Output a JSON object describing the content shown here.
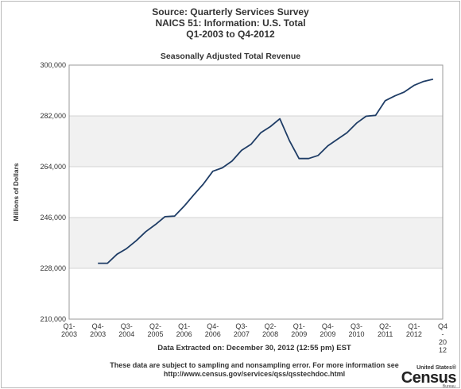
{
  "header": {
    "line1": "Source: Quarterly Services Survey",
    "line2": "NAICS 51: Information: U.S. Total",
    "line3": "Q1-2003 to Q4-2012"
  },
  "chart_data": {
    "type": "line",
    "title": "Seasonally Adjusted Total Revenue",
    "ylabel": "Millions of Dollars",
    "xlabel": "",
    "ylim": [
      210000,
      300000
    ],
    "yticks": [
      "210,000",
      "228,000",
      "246,000",
      "264,000",
      "282,000",
      "300,000"
    ],
    "x_tick_labels": [
      [
        "Q1-",
        "2003"
      ],
      [
        "Q4-",
        "2003"
      ],
      [
        "Q3-",
        "2004"
      ],
      [
        "Q2-",
        "2005"
      ],
      [
        "Q1-",
        "2006"
      ],
      [
        "Q4-",
        "2006"
      ],
      [
        "Q3-",
        "2007"
      ],
      [
        "Q2-",
        "2008"
      ],
      [
        "Q1-",
        "2009"
      ],
      [
        "Q4-",
        "2009"
      ],
      [
        "Q3-",
        "2010"
      ],
      [
        "Q2-",
        "2011"
      ],
      [
        "Q1-",
        "2012"
      ],
      [
        "Q4",
        "-",
        "20",
        "12"
      ]
    ],
    "grid": true,
    "legend": "none",
    "series": [
      {
        "color": "#1f3d66",
        "x": [
          "Q1-2003",
          "Q2-2003",
          "Q3-2003",
          "Q4-2003",
          "Q1-2004",
          "Q2-2004",
          "Q3-2004",
          "Q4-2004",
          "Q1-2005",
          "Q2-2005",
          "Q3-2005",
          "Q4-2005",
          "Q1-2006",
          "Q2-2006",
          "Q3-2006",
          "Q4-2006",
          "Q1-2007",
          "Q2-2007",
          "Q3-2007",
          "Q4-2007",
          "Q1-2008",
          "Q2-2008",
          "Q3-2008",
          "Q4-2008",
          "Q1-2009",
          "Q2-2009",
          "Q3-2009",
          "Q4-2009",
          "Q1-2010",
          "Q2-2010",
          "Q3-2010",
          "Q4-2010",
          "Q1-2011",
          "Q2-2011",
          "Q3-2011",
          "Q4-2011",
          "Q1-2012",
          "Q2-2012",
          "Q3-2012",
          "Q4-2012"
        ],
        "values": [
          null,
          null,
          null,
          229800,
          229800,
          233000,
          235000,
          237800,
          241000,
          243500,
          246300,
          246500,
          250000,
          254000,
          257800,
          262400,
          263600,
          266000,
          269800,
          272000,
          276000,
          278200,
          281000,
          273200,
          266900,
          266900,
          268000,
          271400,
          273700,
          276000,
          279400,
          281900,
          282200,
          287400,
          289100,
          290500,
          292800,
          294200,
          295000,
          null
        ]
      }
    ]
  },
  "footer": {
    "extracted": "Data Extracted on: December 30, 2012 (12:55 pm) EST",
    "note_line1": "These data are subject to sampling and nonsampling error. For more information see",
    "note_line2": "http://www.census.gov/services/qss/qsstechdoc.html"
  },
  "logo": {
    "small": "United States®",
    "big": "Census",
    "bureau": "Bureau"
  }
}
